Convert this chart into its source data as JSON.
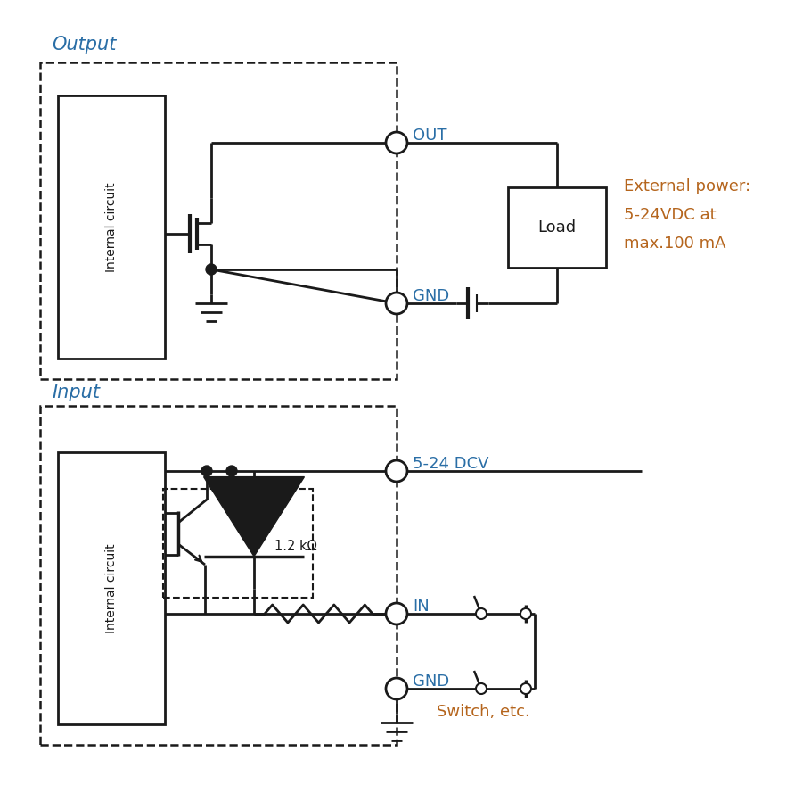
{
  "bg_color": "#ffffff",
  "line_color": "#1a1a1a",
  "label_color_blue": "#2a6ea6",
  "label_color_orange": "#b5651d",
  "output_title": "Output",
  "input_title": "Input",
  "ext_power_text": "External power:\n5-24VDC at\nmax.100 mA",
  "out_label": "OUT",
  "gnd_label": "GND",
  "in_label": "IN",
  "dcv_label": "5-24 DCV",
  "gnd2_label": "GND",
  "switch_label": "Switch, etc.",
  "resistor_label": "1.2 kΩ",
  "internal_circuit_label": "Internal circuit",
  "load_label": "Load",
  "title_fontsize": 15,
  "label_fontsize": 13,
  "small_fontsize": 11
}
